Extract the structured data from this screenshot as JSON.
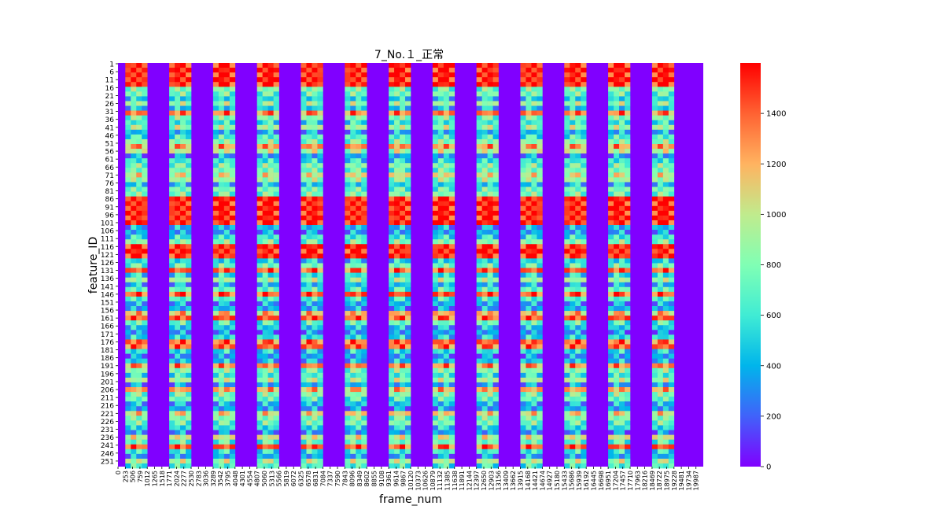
{
  "chart_data": {
    "type": "heatmap",
    "title": "7_No.１_正常",
    "xlabel": "frame_num",
    "ylabel": "feature_ID",
    "x_tick_labels": [
      "0",
      "253",
      "506",
      "759",
      "1012",
      "1265",
      "1518",
      "1771",
      "2024",
      "2277",
      "2530",
      "2783",
      "3036",
      "3289",
      "3542",
      "3795",
      "4048",
      "4301",
      "4554",
      "4807",
      "5060",
      "5313",
      "5566",
      "5819",
      "6072",
      "6325",
      "6578",
      "6831",
      "7084",
      "7337",
      "7590",
      "7843",
      "8096",
      "8349",
      "8602",
      "8855",
      "9108",
      "9361",
      "9614",
      "9867",
      "10120",
      "10373",
      "10626",
      "10879",
      "11132",
      "11385",
      "11638",
      "11891",
      "12144",
      "12397",
      "12650",
      "12903",
      "13156",
      "13409",
      "13662",
      "13915",
      "14168",
      "14421",
      "14674",
      "14927",
      "15180",
      "15433",
      "15686",
      "15939",
      "16192",
      "16445",
      "16698",
      "16951",
      "17204",
      "17457",
      "17710",
      "17963",
      "18216",
      "18469",
      "18722",
      "18975",
      "19228",
      "19481",
      "19734",
      "19987"
    ],
    "y_tick_labels": [
      "1",
      "6",
      "11",
      "16",
      "21",
      "26",
      "31",
      "36",
      "41",
      "46",
      "51",
      "56",
      "61",
      "66",
      "71",
      "76",
      "81",
      "86",
      "91",
      "96",
      "101",
      "106",
      "111",
      "116",
      "121",
      "126",
      "131",
      "136",
      "141",
      "146",
      "151",
      "156",
      "161",
      "166",
      "171",
      "176",
      "181",
      "186",
      "191",
      "196",
      "201",
      "206",
      "211",
      "216",
      "221",
      "226",
      "231",
      "236",
      "241",
      "246",
      "251"
    ],
    "x_range": [
      0,
      20240
    ],
    "y_range": [
      1,
      255
    ],
    "active_frame_bands": [
      [
        253,
        1012
      ],
      [
        1771,
        2530
      ],
      [
        3289,
        4048
      ],
      [
        4807,
        5566
      ],
      [
        6325,
        7084
      ],
      [
        7843,
        8602
      ],
      [
        9361,
        10120
      ],
      [
        10879,
        11638
      ],
      [
        12397,
        13156
      ],
      [
        13915,
        14674
      ],
      [
        15433,
        16192
      ],
      [
        16951,
        17710
      ],
      [
        18469,
        19228
      ]
    ],
    "background_value": 0,
    "high_feature_ranges": [
      [
        1,
        15
      ],
      [
        85,
        100
      ],
      [
        114,
        121
      ]
    ],
    "colormap": "rainbow",
    "colorbar": {
      "range": [
        0,
        1600
      ],
      "tick_values": [
        0,
        200,
        400,
        600,
        800,
        1000,
        1200,
        1400
      ],
      "tick_labels": [
        "0",
        "200",
        "400",
        "600",
        "800",
        "1000",
        "1200",
        "1400"
      ]
    },
    "colors": {
      "low": "#8000ff",
      "mid": "#80ffb4",
      "high": "#ff0000"
    }
  }
}
